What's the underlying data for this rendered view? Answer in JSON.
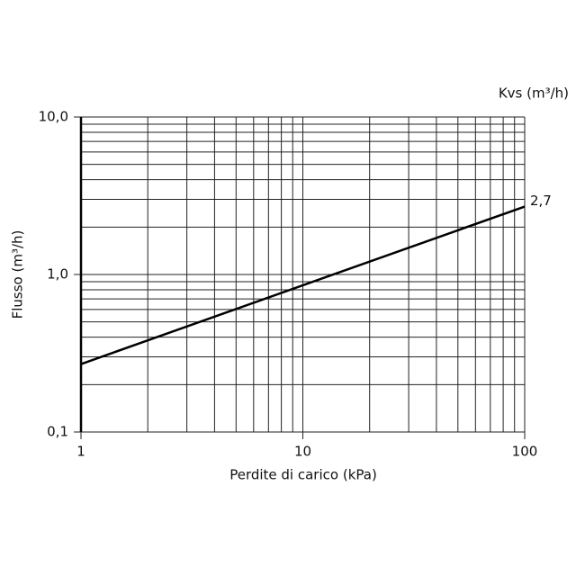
{
  "chart_data": {
    "type": "line",
    "xlabel": "Perdite di carico (kPa)",
    "ylabel": "Flusso (m³/h)",
    "series_title": "Kvs (m³/h)",
    "x": [
      1,
      100
    ],
    "series": [
      {
        "color": "#000000",
        "values": [
          0.27,
          2.7
        ],
        "value_labels": [
          null,
          "2,7"
        ]
      }
    ],
    "xlim": [
      1,
      100
    ],
    "ylim": [
      0.1,
      10
    ],
    "xscale": "log",
    "yscale": "log",
    "xticks": [
      1,
      10,
      100
    ],
    "yticks": [
      {
        "value": 0.1,
        "label": "0,1"
      },
      {
        "value": 1,
        "label": "1,0"
      },
      {
        "value": 10,
        "label": "10,0"
      }
    ],
    "xminor": [
      2,
      3,
      4,
      5,
      6,
      7,
      8,
      9,
      20,
      30,
      40,
      50,
      60,
      70,
      80,
      90
    ],
    "yminor": [
      0.2,
      0.3,
      0.4,
      0.5,
      0.6,
      0.7,
      0.8,
      0.9,
      2,
      3,
      4,
      5,
      6,
      7,
      8,
      9
    ],
    "grid": true
  }
}
